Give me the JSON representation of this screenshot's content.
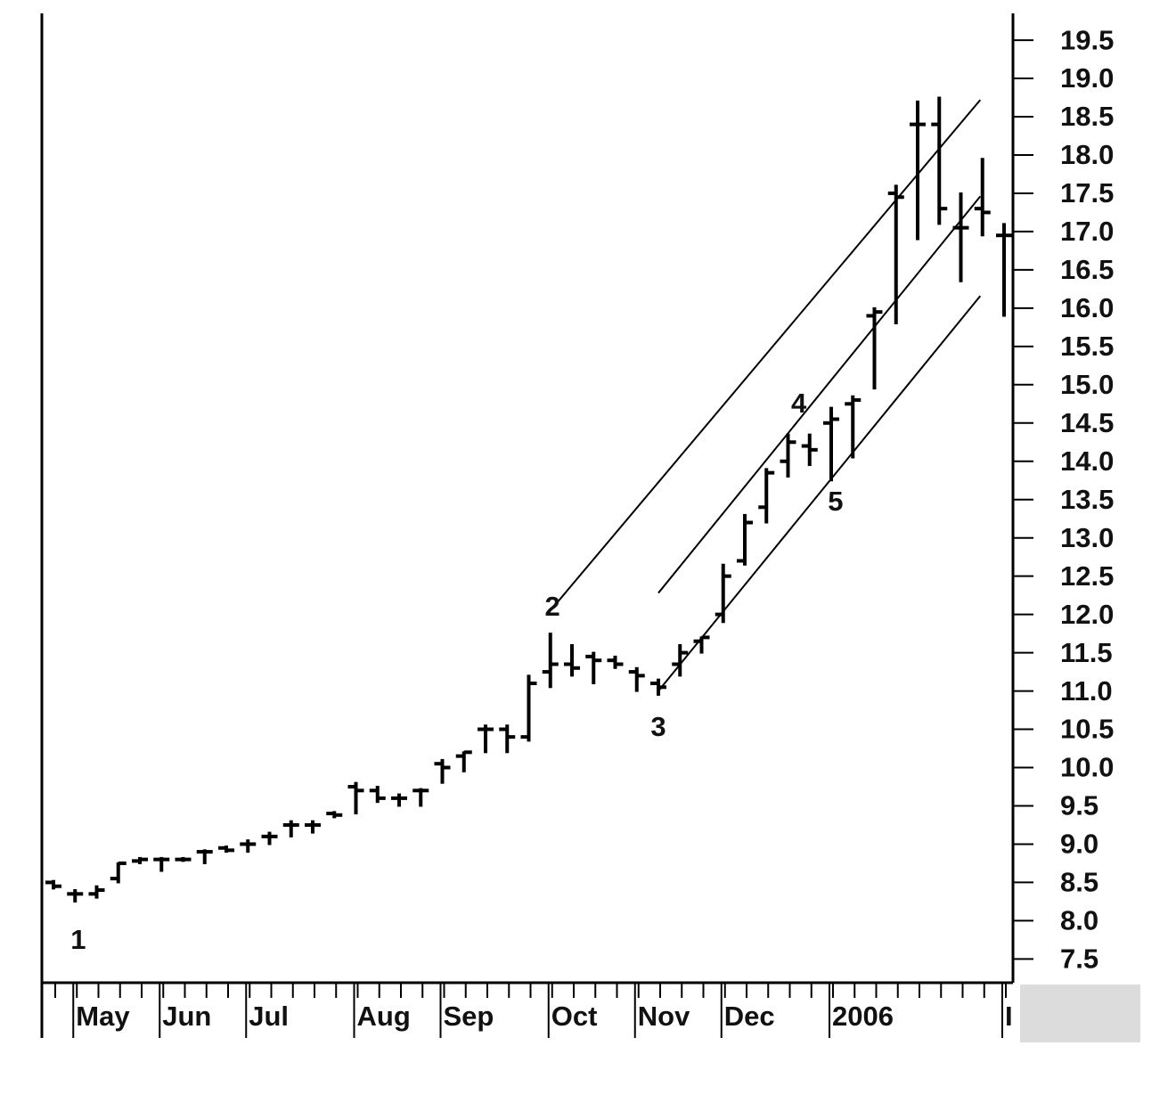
{
  "chart_data": {
    "type": "ohlc",
    "categories": [
      null,
      "May",
      null,
      null,
      null,
      "Jun",
      null,
      null,
      null,
      "Jul",
      null,
      null,
      null,
      null,
      "Aug",
      null,
      null,
      null,
      "Sep",
      null,
      null,
      null,
      null,
      "Oct",
      null,
      null,
      null,
      "Nov",
      null,
      null,
      null,
      "Dec",
      null,
      null,
      null,
      null,
      "2006",
      null,
      null,
      null,
      null,
      null,
      null,
      null,
      "I"
    ],
    "color": "#000000",
    "open": [
      8.5,
      8.35,
      8.35,
      8.55,
      8.78,
      8.8,
      8.8,
      8.9,
      8.95,
      9.0,
      9.1,
      9.25,
      9.25,
      9.4,
      9.75,
      9.7,
      9.6,
      9.7,
      10.05,
      10.15,
      10.5,
      10.5,
      10.4,
      11.25,
      11.35,
      11.45,
      11.4,
      11.25,
      11.1,
      11.35,
      11.65,
      12.0,
      12.7,
      13.4,
      14.0,
      14.2,
      14.5,
      14.75,
      15.9,
      17.5,
      18.4,
      18.4,
      17.05,
      17.3,
      16.95
    ],
    "high": [
      8.52,
      8.4,
      8.45,
      8.75,
      8.82,
      8.82,
      8.82,
      8.92,
      8.97,
      9.05,
      9.15,
      9.3,
      9.3,
      9.42,
      9.8,
      9.75,
      9.65,
      9.72,
      10.1,
      10.2,
      10.55,
      10.55,
      11.2,
      11.75,
      11.6,
      11.5,
      11.45,
      11.3,
      11.15,
      11.6,
      11.7,
      12.65,
      13.3,
      13.9,
      14.35,
      14.35,
      14.7,
      14.85,
      16.0,
      17.6,
      18.7,
      18.75,
      17.5,
      17.95,
      17.1
    ],
    "low": [
      8.42,
      8.25,
      8.3,
      8.5,
      8.75,
      8.65,
      8.78,
      8.75,
      8.9,
      8.9,
      9.0,
      9.1,
      9.15,
      9.35,
      9.4,
      9.55,
      9.5,
      9.5,
      9.8,
      9.95,
      10.2,
      10.2,
      10.35,
      11.05,
      11.2,
      11.1,
      11.3,
      11.0,
      10.95,
      11.2,
      11.5,
      11.9,
      12.65,
      13.2,
      13.8,
      13.95,
      13.75,
      14.05,
      14.95,
      15.8,
      16.9,
      17.1,
      16.35,
      16.95,
      15.9
    ],
    "close": [
      8.45,
      8.35,
      8.4,
      8.75,
      8.8,
      8.8,
      8.8,
      8.9,
      8.92,
      9.0,
      9.1,
      9.25,
      9.25,
      9.38,
      9.7,
      9.6,
      9.6,
      9.7,
      10.0,
      10.2,
      10.5,
      10.4,
      11.1,
      11.35,
      11.3,
      11.4,
      11.35,
      11.2,
      11.05,
      11.5,
      11.7,
      12.5,
      13.2,
      13.85,
      14.25,
      14.15,
      14.55,
      14.8,
      15.95,
      17.45,
      18.4,
      17.3,
      17.05,
      17.25,
      16.95
    ],
    "ylim": [
      7.19,
      19.85
    ],
    "yticks": [
      7.5,
      {
        "value": 8,
        "label": "8.0"
      },
      8.5,
      {
        "value": 9,
        "label": "9.0"
      },
      9.5,
      {
        "value": 10,
        "label": "10.0"
      },
      10.5,
      {
        "value": 11,
        "label": "11.0"
      },
      11.5,
      {
        "value": 12,
        "label": "12.0"
      },
      12.5,
      {
        "value": 13,
        "label": "13.0"
      },
      13.5,
      {
        "value": 14,
        "label": "14.0"
      },
      14.5,
      {
        "value": 15,
        "label": "15.0"
      },
      15.5,
      {
        "value": 16,
        "label": "16.0"
      },
      16.5,
      {
        "value": 17,
        "label": "17.0"
      },
      17.5,
      {
        "value": 18,
        "label": "18.0"
      },
      18.5,
      {
        "value": 19,
        "label": "19.0"
      },
      19.5
    ],
    "trend_lines": [
      {
        "x": [
          23,
          42.9
        ],
        "y": [
          12.05,
          18.72
        ]
      },
      {
        "x": [
          28,
          42.9
        ],
        "y": [
          12.28,
          17.46
        ]
      },
      {
        "x": [
          28,
          42.9
        ],
        "y": [
          11.0,
          16.16
        ]
      }
    ],
    "annotations": [
      {
        "text": "1",
        "x": 1.15,
        "y": 7.73
      },
      {
        "text": "2",
        "x": 23.1,
        "y": 12.08
      },
      {
        "text": "3",
        "x": 28,
        "y": 10.51
      },
      {
        "text": "4",
        "x": 34.5,
        "y": 14.73
      },
      {
        "text": "5",
        "x": 36.2,
        "y": 13.45
      }
    ]
  }
}
